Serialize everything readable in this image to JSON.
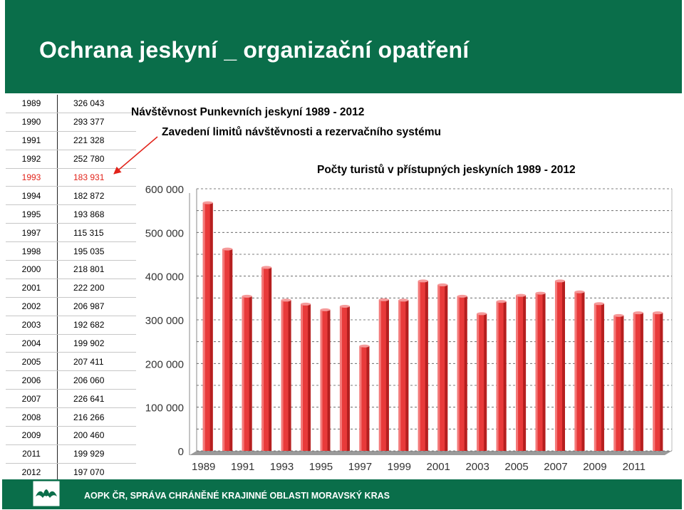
{
  "page_title": "Ochrana jeskyní _ organizační opatření",
  "table": {
    "rows": [
      {
        "year": "1989",
        "value": "326 043"
      },
      {
        "year": "1990",
        "value": "293 377"
      },
      {
        "year": "1991",
        "value": "221 328"
      },
      {
        "year": "1992",
        "value": "252 780"
      },
      {
        "year": "1993",
        "value": "183 931"
      },
      {
        "year": "1994",
        "value": "182 872"
      },
      {
        "year": "1995",
        "value": "193 868"
      },
      {
        "year": "1997",
        "value": "115 315"
      },
      {
        "year": "1998",
        "value": "195 035"
      },
      {
        "year": "2000",
        "value": "218 801"
      },
      {
        "year": "2001",
        "value": "222 200"
      },
      {
        "year": "2002",
        "value": "206 987"
      },
      {
        "year": "2003",
        "value": "192 682"
      },
      {
        "year": "2004",
        "value": "199 902"
      },
      {
        "year": "2005",
        "value": "207 411"
      },
      {
        "year": "2006",
        "value": "206 060"
      },
      {
        "year": "2007",
        "value": "226 641"
      },
      {
        "year": "2008",
        "value": "216 266"
      },
      {
        "year": "2009",
        "value": "200 460"
      },
      {
        "year": "2011",
        "value": "199 929"
      },
      {
        "year": "2012",
        "value": "197 070"
      }
    ],
    "highlight_year": "1993",
    "highlight_color": "#e2231a"
  },
  "texts": {
    "heading": "Návštěvnost Punkevních jeskyní 1989 - 2012",
    "note": "Zavedení limitů návštěvnosti a rezervačního systému"
  },
  "chart_data": {
    "type": "bar",
    "title": "Počty turistů v přístupných jeskyních 1989 - 2012",
    "categories": [
      "1989",
      "1990",
      "1991",
      "1992",
      "1993",
      "1994",
      "1995",
      "1996",
      "1997",
      "1998",
      "1999",
      "2000",
      "2001",
      "2002",
      "2003",
      "2004",
      "2005",
      "2006",
      "2007",
      "2008",
      "2009",
      "2010",
      "2011",
      "2012"
    ],
    "x_tick_labels": [
      "1989",
      "1991",
      "1993",
      "1995",
      "1997",
      "1999",
      "2001",
      "2003",
      "2005",
      "2007",
      "2009",
      "2011"
    ],
    "values": [
      568000,
      462000,
      354000,
      420000,
      345000,
      336000,
      323000,
      331000,
      240000,
      346000,
      345000,
      389000,
      380000,
      354000,
      314000,
      342000,
      356000,
      361000,
      389000,
      364000,
      337000,
      310000,
      316000,
      316000
    ],
    "y_ticks": [
      "0",
      "100 000",
      "200 000",
      "300 000",
      "400 000",
      "500 000",
      "600 000"
    ],
    "ylim": [
      0,
      600000
    ],
    "bar_color": "#e83a3a",
    "grid": true
  },
  "footer": {
    "text": "AOPK ČR, SPRÁVA CHRÁNĚNÉ KRAJINNÉ OBLASTI MORAVSKÝ KRAS",
    "logo": "bat-logo"
  },
  "colors": {
    "header_bg": "#0a6e4a",
    "arrow": "#e2231a"
  }
}
